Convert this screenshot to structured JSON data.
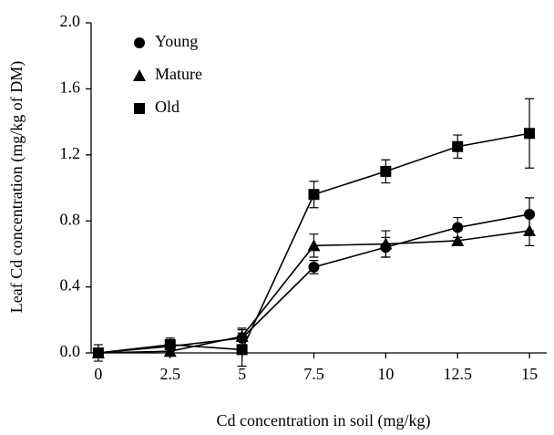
{
  "chart_data": {
    "type": "line",
    "x_label": "Cd concentration in soil (mg/kg)",
    "y_label": "Leaf Cd concentration (mg/kg of DM)",
    "x": [
      0,
      2.5,
      5,
      7.5,
      10,
      12.5,
      15
    ],
    "series": [
      {
        "name": "Young",
        "color": "#000000",
        "marker": "circle",
        "values": [
          0,
          0.04,
          0.09,
          0.52,
          0.64,
          0.76,
          0.84
        ],
        "errors": [
          0.02,
          0.04,
          0.05,
          0.04,
          0.06,
          0.06,
          0.1
        ]
      },
      {
        "name": "Mature",
        "color": "#000000",
        "marker": "triangle",
        "values": [
          0,
          0.01,
          0.1,
          0.65,
          0.66,
          0.68,
          0.74
        ],
        "errors": [
          0.02,
          0.02,
          0.05,
          0.07,
          0.08,
          0.02,
          0.09
        ]
      },
      {
        "name": "Old",
        "color": "#000000",
        "marker": "square",
        "values": [
          0,
          0.05,
          0.02,
          0.96,
          1.1,
          1.25,
          1.33
        ],
        "errors": [
          0.05,
          0.04,
          0.1,
          0.08,
          0.07,
          0.07,
          0.21
        ]
      }
    ],
    "xlim": [
      -0.25,
      15.6
    ],
    "ylim": [
      0,
      2
    ],
    "xticks": [
      0,
      2.5,
      5,
      7.5,
      10,
      12.5,
      15
    ],
    "yticks": [
      {
        "value": 0,
        "label": "0.0"
      },
      0.4,
      0.8,
      1.2,
      1.6,
      {
        "value": 2,
        "label": "2.0"
      }
    ],
    "legend": "upper left",
    "grid": false
  }
}
